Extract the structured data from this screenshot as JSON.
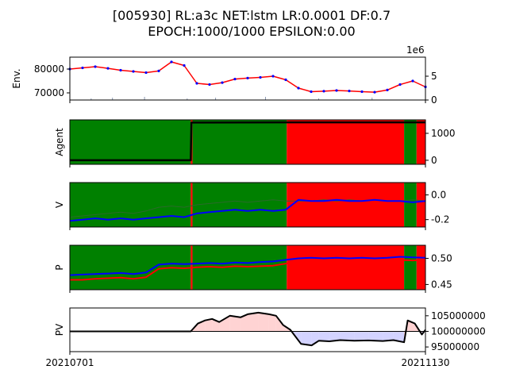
{
  "title": {
    "line1": "[005930] RL:a3c NET:lstm LR:0.0001 DF:0.7",
    "line2": "EPOCH:1000/1000 EPSILON:0.00"
  },
  "colors": {
    "buy": "#008000",
    "sell": "#ff0000",
    "price": "#ff0000",
    "buy_marker": "#0000ff",
    "profit_fill": "#ffc0c0",
    "loss_fill": "#c0c0ff",
    "line": "#000000"
  },
  "x_ticks": [
    "20210701",
    "20211130"
  ],
  "chart_data": [
    {
      "type": "line",
      "panel": "env",
      "ylabel": "Env.",
      "y_ticks": [
        70000,
        80000
      ],
      "ylim": [
        67000,
        85000
      ],
      "right_axis": {
        "ticks": [
          0,
          5
        ],
        "offset_text": "1e6",
        "ylim": [
          0,
          9
        ]
      },
      "x": [
        "20210701",
        "20210705",
        "20210709",
        "20210713",
        "20210719",
        "20210723",
        "20210727",
        "20210802",
        "20210806",
        "20210812",
        "20210818",
        "20210824",
        "20210830",
        "20210903",
        "20210909",
        "20210915",
        "20210923",
        "20210929",
        "20211005",
        "20211011",
        "20211015",
        "20211021",
        "20211027",
        "20211102",
        "20211108",
        "20211112",
        "20211118",
        "20211124",
        "20211130"
      ],
      "series": [
        {
          "values": [
            80000,
            80500,
            81000,
            80300,
            79500,
            79000,
            78500,
            79200,
            83000,
            81500,
            74000,
            73500,
            74300,
            75800,
            76200,
            76500,
            77000,
            75500,
            72000,
            70500,
            70700,
            71000,
            70800,
            70500,
            70300,
            71200,
            73500,
            75000,
            72500
          ]
        }
      ]
    },
    {
      "type": "area",
      "panel": "agent",
      "ylabel": "Agent",
      "y_ticks": [
        0,
        1000
      ],
      "ylim": [
        -150,
        1500
      ],
      "action_segments": [
        {
          "start": 0.0,
          "end": 0.34,
          "action": "buy"
        },
        {
          "start": 0.34,
          "end": 0.345,
          "action": "sell"
        },
        {
          "start": 0.345,
          "end": 0.61,
          "action": "buy"
        },
        {
          "start": 0.61,
          "end": 0.94,
          "action": "sell"
        },
        {
          "start": 0.94,
          "end": 0.975,
          "action": "buy"
        },
        {
          "start": 0.975,
          "end": 1.0,
          "action": "sell"
        }
      ],
      "series": [
        {
          "name": "shares",
          "x": [
            0,
            0.34,
            0.342,
            0.345,
            0.61,
            1.0
          ],
          "values": [
            0,
            0,
            1400,
            1400,
            1410,
            1410
          ]
        }
      ]
    },
    {
      "type": "line",
      "panel": "value",
      "ylabel": "V",
      "y_ticks": [
        -0.2,
        0.0
      ],
      "ylim": [
        -0.26,
        0.1
      ],
      "series": [
        {
          "name": "buy",
          "values": [
            -0.18,
            -0.17,
            -0.16,
            -0.15,
            -0.14,
            -0.15,
            -0.13,
            -0.1,
            -0.09,
            -0.1,
            -0.08,
            -0.07,
            -0.06,
            -0.05,
            -0.06,
            -0.05,
            -0.04,
            -0.05,
            -0.05,
            -0.05,
            -0.04,
            -0.05,
            -0.04,
            -0.05,
            -0.04,
            -0.05,
            -0.05,
            -0.04,
            -0.05
          ]
        },
        {
          "name": "sell",
          "values": [
            -0.21,
            -0.2,
            -0.19,
            -0.2,
            -0.19,
            -0.2,
            -0.19,
            -0.18,
            -0.17,
            -0.18,
            -0.15,
            -0.14,
            -0.13,
            -0.12,
            -0.13,
            -0.12,
            -0.13,
            -0.12,
            -0.04,
            -0.05,
            -0.05,
            -0.04,
            -0.05,
            -0.05,
            -0.04,
            -0.05,
            -0.05,
            -0.06,
            -0.05
          ]
        }
      ]
    },
    {
      "type": "line",
      "panel": "policy",
      "ylabel": "P",
      "y_ticks": [
        0.45,
        0.5
      ],
      "ylim": [
        0.44,
        0.525
      ],
      "series": [
        {
          "name": "buy",
          "values": [
            0.459,
            0.459,
            0.461,
            0.462,
            0.463,
            0.461,
            0.464,
            0.48,
            0.482,
            0.481,
            0.483,
            0.484,
            0.483,
            0.485,
            0.484,
            0.485,
            0.486,
            0.49,
            0.497,
            0.496,
            0.497,
            0.497,
            0.496,
            0.497,
            0.497,
            0.496,
            0.497,
            0.496,
            0.497
          ]
        },
        {
          "name": "sell",
          "values": [
            0.468,
            0.469,
            0.47,
            0.471,
            0.472,
            0.47,
            0.473,
            0.488,
            0.49,
            0.489,
            0.49,
            0.491,
            0.49,
            0.492,
            0.491,
            0.493,
            0.494,
            0.497,
            0.5,
            0.501,
            0.5,
            0.501,
            0.5,
            0.501,
            0.5,
            0.501,
            0.503,
            0.502,
            0.501
          ]
        }
      ]
    },
    {
      "type": "area",
      "panel": "pv",
      "ylabel": "PV",
      "y_ticks": [
        95000000,
        100000000,
        105000000
      ],
      "y_tick_labels": [
        "95000000",
        "100000000",
        "105000000"
      ],
      "ylim": [
        93500000,
        107500000
      ],
      "baseline": 100000000,
      "x": [
        0,
        0.34,
        0.36,
        0.38,
        0.4,
        0.42,
        0.45,
        0.48,
        0.5,
        0.53,
        0.56,
        0.58,
        0.6,
        0.62,
        0.65,
        0.68,
        0.7,
        0.73,
        0.76,
        0.8,
        0.84,
        0.88,
        0.91,
        0.94,
        0.95,
        0.97,
        0.99,
        1.0
      ],
      "values": [
        100000000,
        100000000,
        102500000,
        103500000,
        104000000,
        103000000,
        105000000,
        104500000,
        105500000,
        106000000,
        105500000,
        105000000,
        102000000,
        100500000,
        96000000,
        95500000,
        97000000,
        96800000,
        97200000,
        97000000,
        97100000,
        96900000,
        97200000,
        96500000,
        103500000,
        102500000,
        99000000,
        100500000
      ]
    }
  ]
}
